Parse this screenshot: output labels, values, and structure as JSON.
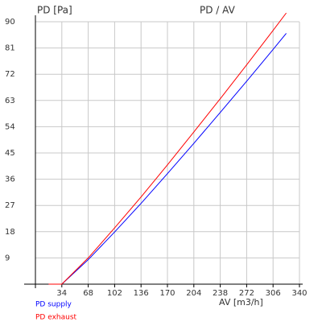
{
  "chart_data": {
    "type": "line",
    "title": "PD / AV",
    "y_label": "PD [Pa]",
    "x_label": "AV [m3/h]",
    "x": [
      17,
      34,
      68,
      102,
      136,
      170,
      204,
      238,
      272,
      306,
      323
    ],
    "series": [
      {
        "name": "PD supply",
        "color": "#0000ff",
        "values": [
          0,
          0,
          8.4,
          17.9,
          27.7,
          37.9,
          48.3,
          58.9,
          69.6,
          80.5,
          86
        ]
      },
      {
        "name": "PD exhaust",
        "color": "#ff0000",
        "values": [
          0,
          0,
          9.0,
          19.3,
          29.9,
          40.9,
          52.2,
          63.6,
          75.2,
          87,
          93
        ]
      }
    ],
    "xlim": [
      0,
      340
    ],
    "ylim": [
      0,
      90
    ],
    "xticks": [
      34,
      68,
      102,
      136,
      170,
      204,
      238,
      272,
      306,
      340
    ],
    "yticks": [
      9,
      18,
      27,
      36,
      45,
      54,
      63,
      72,
      81,
      90
    ],
    "grid": true,
    "legend": "bottom-left"
  }
}
